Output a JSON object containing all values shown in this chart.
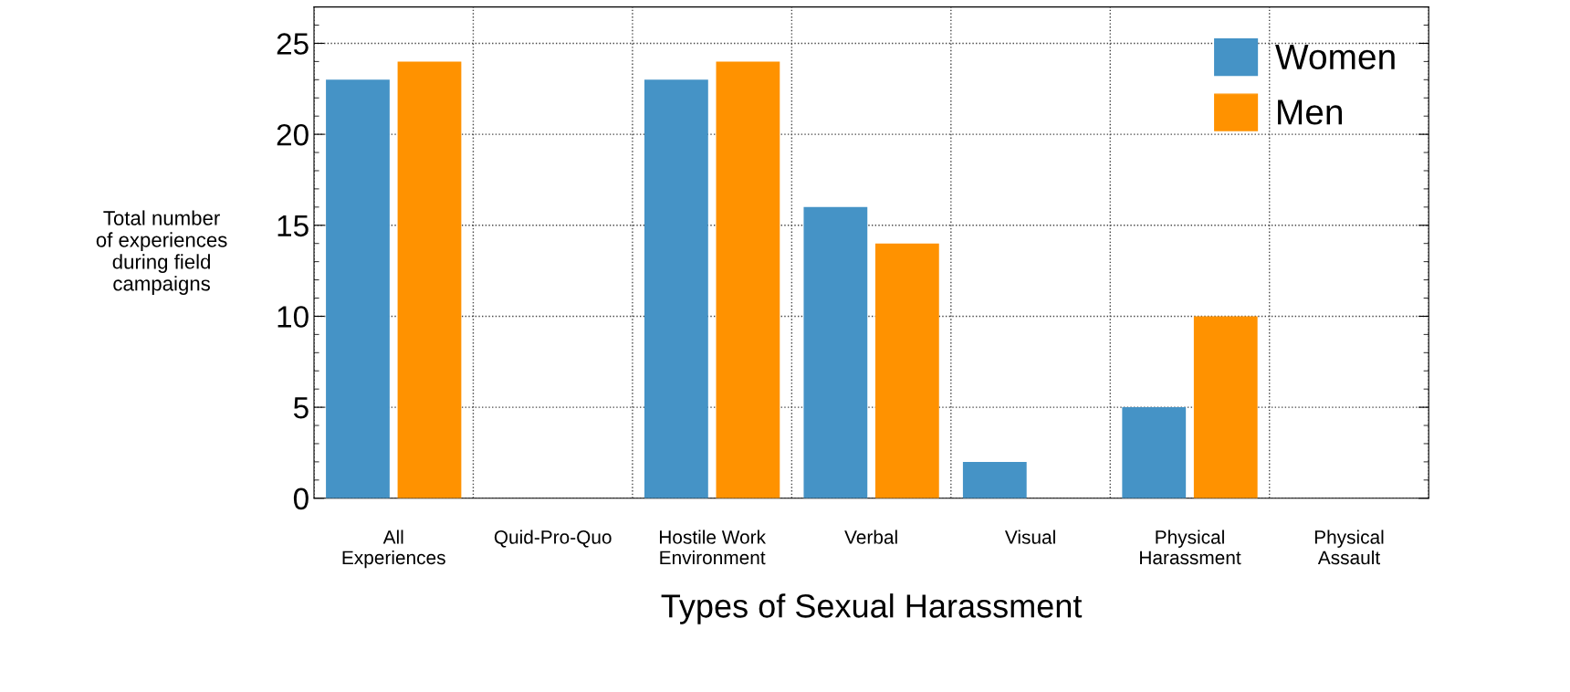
{
  "chart_data": {
    "type": "bar",
    "xlabel": "Types of Sexual Harassment",
    "ylabel": "Total number\nof experiences\nduring field\ncampaigns",
    "categories": [
      "All\nExperiences",
      "Quid-Pro-Quo",
      "Hostile Work\nEnvironment",
      "Verbal",
      "Visual",
      "Physical\nHarassment",
      "Physical\nAssault"
    ],
    "series": [
      {
        "name": "Women",
        "color": "#4593c6",
        "values": [
          23,
          0,
          23,
          16,
          2,
          5,
          0
        ]
      },
      {
        "name": "Men",
        "color": "#ff9200",
        "values": [
          24,
          0,
          24,
          14,
          0,
          10,
          0
        ]
      }
    ],
    "ylim": [
      0,
      27
    ],
    "yticks": [
      0,
      5,
      10,
      15,
      20,
      25
    ],
    "grid": true,
    "legend": "top right"
  }
}
